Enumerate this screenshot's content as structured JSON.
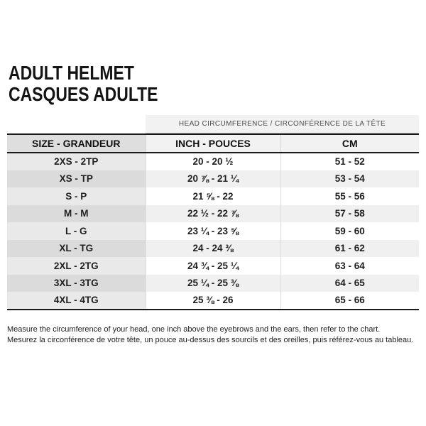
{
  "title": {
    "line1": "ADULT HELMET",
    "line2": "CASQUES ADULTE"
  },
  "table": {
    "band_label": "HEAD CIRCUMFERENCE / CIRCONFÉRENCE DE LA TÊTE",
    "columns": [
      "SIZE - GRANDEUR",
      "INCH - POUCES",
      "CM"
    ],
    "rows": [
      [
        "2XS - 2TP",
        "20 - 20 ½",
        "51 - 52"
      ],
      [
        "XS - TP",
        "20 ⅞ - 21 ¼",
        "53 - 54"
      ],
      [
        "S - P",
        "21 ⅝ - 22",
        "55 - 56"
      ],
      [
        "M - M",
        "22 ½ - 22 ⅞",
        "57 - 58"
      ],
      [
        "L - G",
        "23 ¼ - 23 ⅝",
        "59 - 60"
      ],
      [
        "XL - TG",
        "24 - 24 ⅜",
        "61 - 62"
      ],
      [
        "2XL - 2TG",
        "24 ¾ - 25 ¼",
        "63 - 64"
      ],
      [
        "3XL - 3TG",
        "25 ¼ - 25 ⅜",
        "64 - 65"
      ],
      [
        "4XL - 4TG",
        "25 ⅜ - 26",
        "65 - 66"
      ]
    ]
  },
  "footer": {
    "line1": "Measure the circumference of your head, one inch above the eyebrows and the ears, then refer to the chart.",
    "line2": "Mesurez la circonférence de votre tête, un pouce au-dessus des sourcils et des oreilles, puis référez-vous au tableau."
  },
  "colors": {
    "border_black": "#1a1a1a",
    "band_bg": "#f2f2f2",
    "header_size_bg": "#dedede",
    "header_main_bg": "#f2f2f2",
    "size_col_odd": "#e9e9e9",
    "size_col_even": "#dbdbdb",
    "main_col_odd": "#ffffff",
    "main_col_even": "#f0f0f0"
  }
}
